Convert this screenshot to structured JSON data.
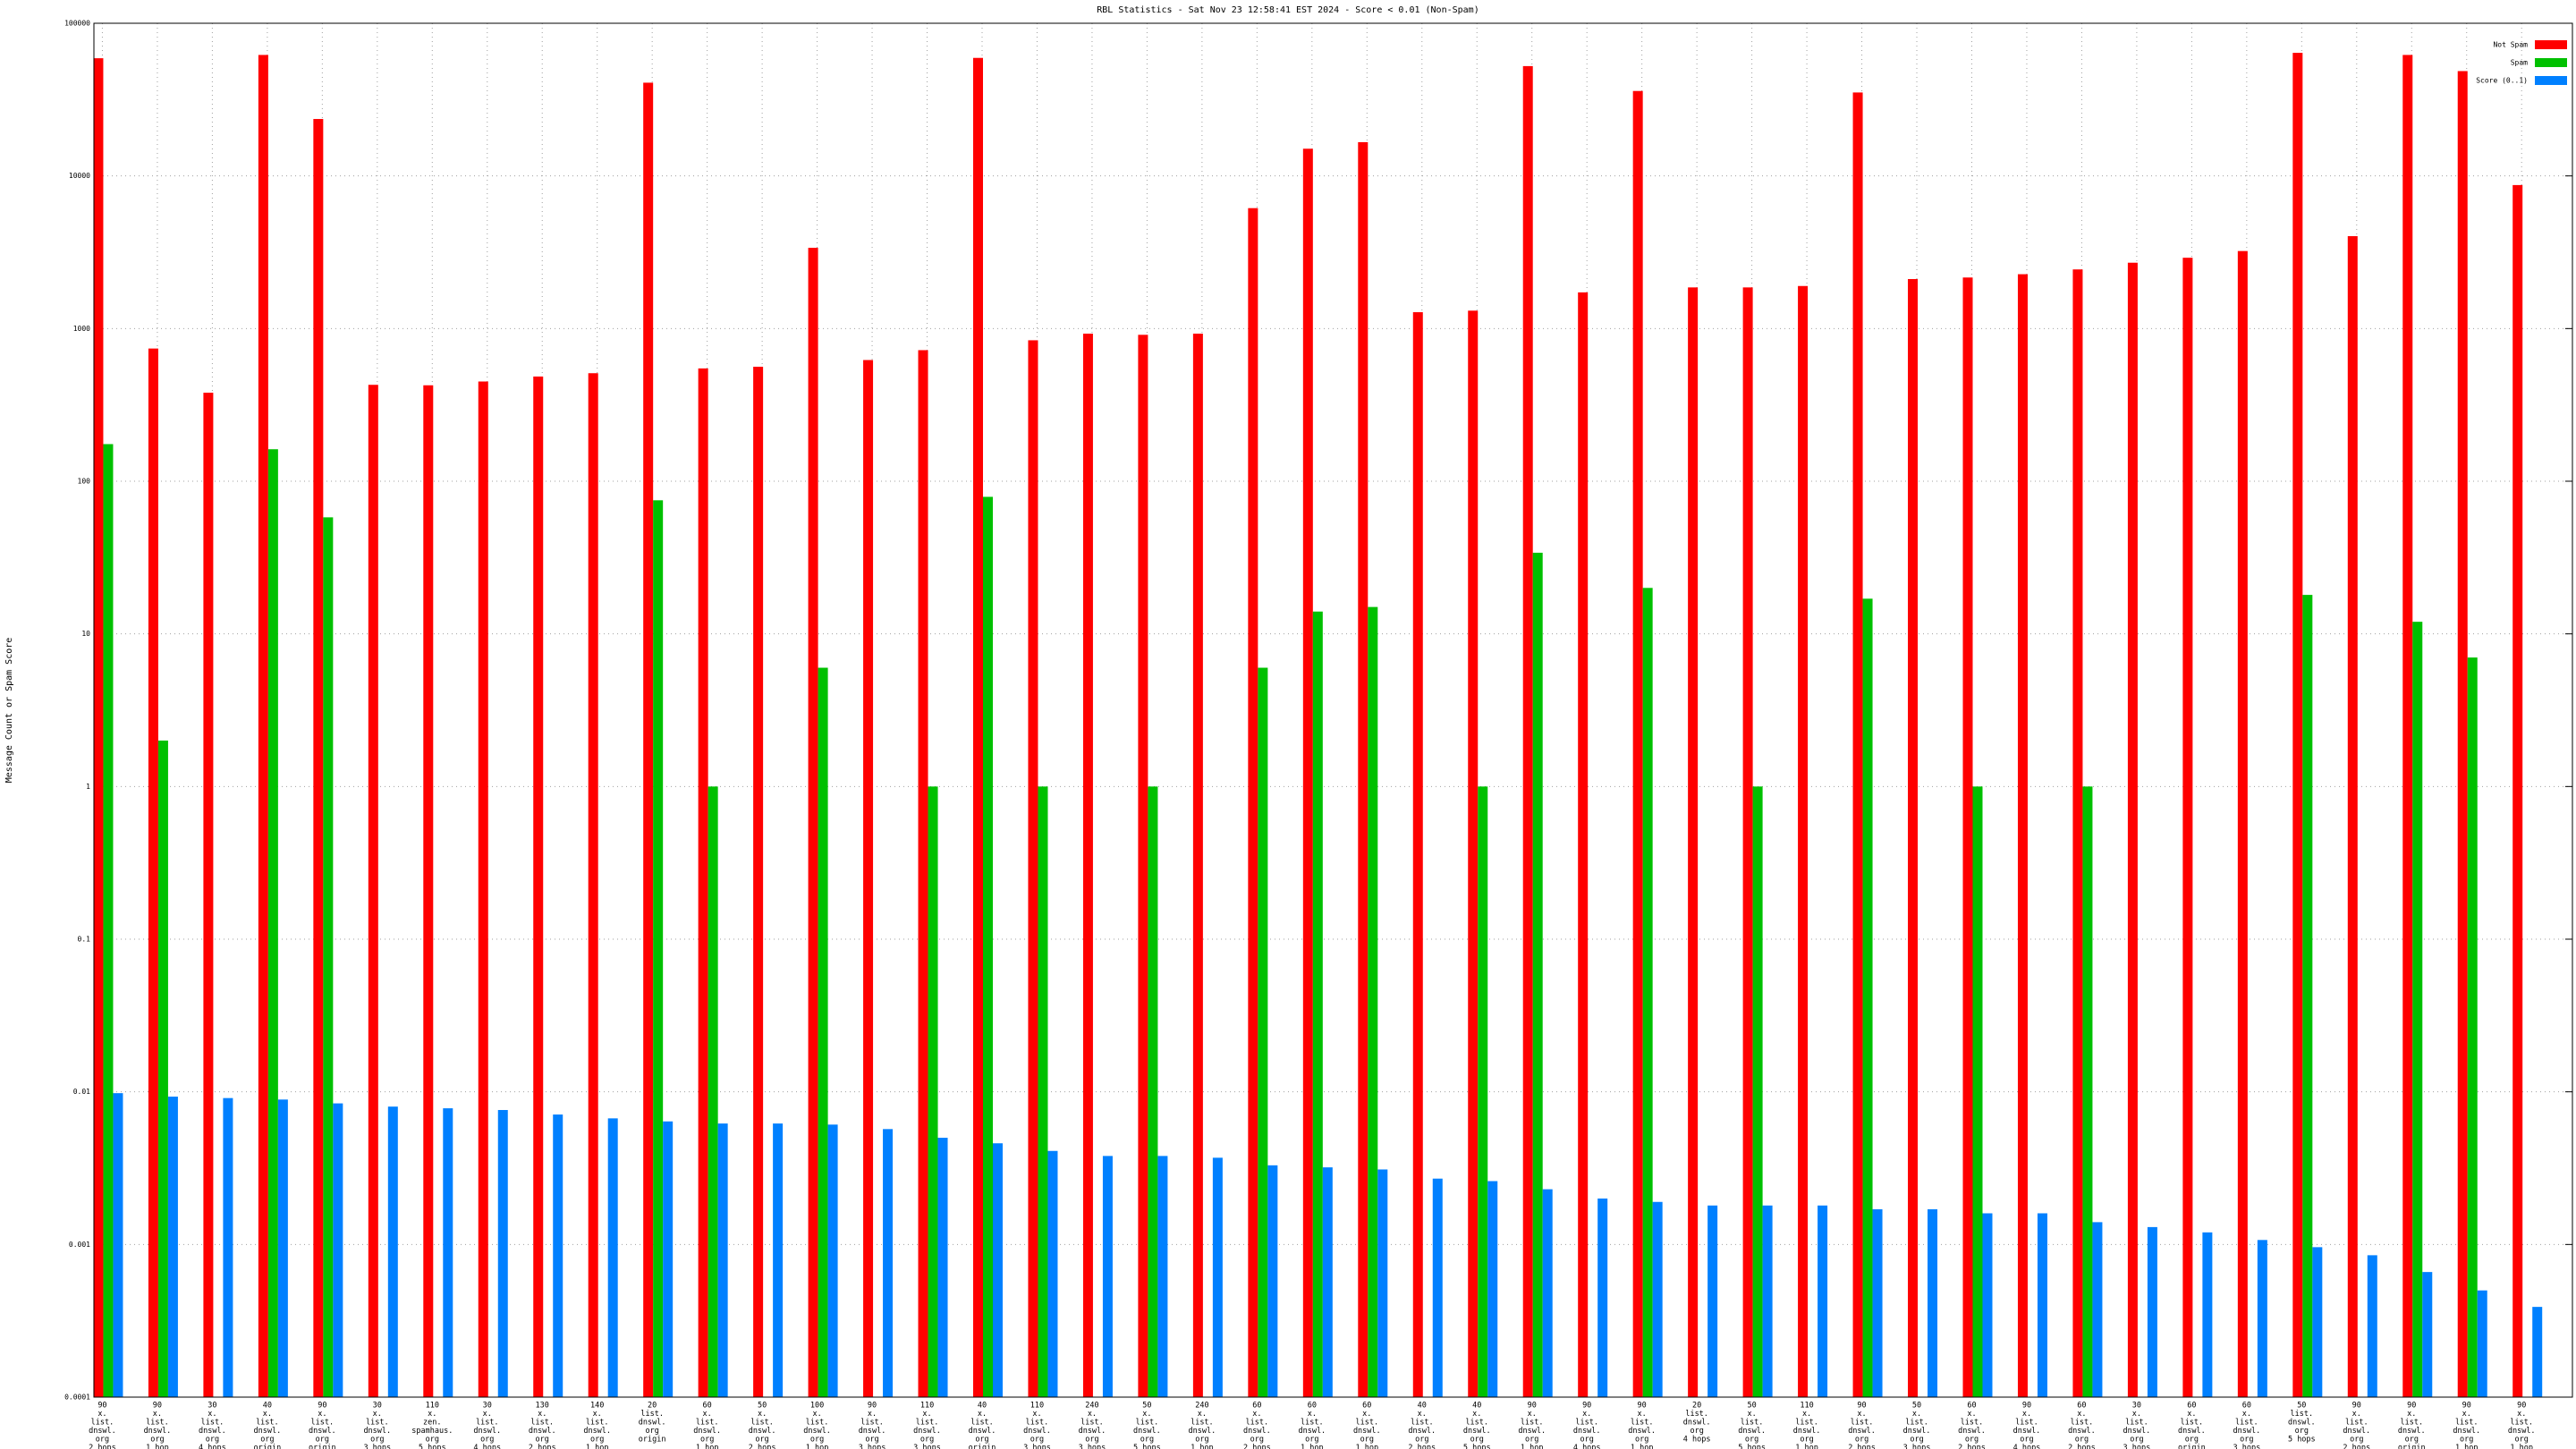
{
  "chart_data": {
    "type": "bar",
    "title": "RBL Statistics - Sat Nov 23 12:58:41 EST 2024 - Score < 0.01 (Non-Spam)",
    "y_label": "Message Count or Spam Score",
    "log_y": true,
    "grid": true,
    "legend": "upper right",
    "ylim": [
      0.0001,
      100000
    ],
    "yticks": [
      0.0001,
      0.001,
      0.01,
      0.1,
      1,
      10,
      100,
      1000,
      10000,
      100000
    ],
    "categories": [
      [
        "90",
        "x.",
        "list.",
        "dnswl.",
        "org",
        "2 hops"
      ],
      [
        "90",
        "x.",
        "list.",
        "dnswl.",
        "org",
        "1 hop"
      ],
      [
        "30",
        "x.",
        "list.",
        "dnswl.",
        "org",
        "4 hops"
      ],
      [
        "40",
        "x.",
        "list.",
        "dnswl.",
        "org",
        "origin"
      ],
      [
        "90",
        "x.",
        "list.",
        "dnswl.",
        "org",
        "origin"
      ],
      [
        "30",
        "x.",
        "list.",
        "dnswl.",
        "org",
        "3 hops"
      ],
      [
        "110",
        "x.",
        "zen.",
        "spamhaus.",
        "org",
        "5 hops"
      ],
      [
        "30",
        "x.",
        "list.",
        "dnswl.",
        "org",
        "4 hops"
      ],
      [
        "130",
        "x.",
        "list.",
        "dnswl.",
        "org",
        "2 hops"
      ],
      [
        "140",
        "x.",
        "list.",
        "dnswl.",
        "org",
        "1 hop"
      ],
      [
        "20",
        "list.",
        "dnswl.",
        "org",
        "origin"
      ],
      [
        "60",
        "x.",
        "list.",
        "dnswl.",
        "org",
        "1 hop"
      ],
      [
        "50",
        "x.",
        "list.",
        "dnswl.",
        "org",
        "2 hops"
      ],
      [
        "100",
        "x.",
        "list.",
        "dnswl.",
        "org",
        "1 hop"
      ],
      [
        "90",
        "x.",
        "list.",
        "dnswl.",
        "org",
        "3 hops"
      ],
      [
        "110",
        "x.",
        "list.",
        "dnswl.",
        "org",
        "3 hops"
      ],
      [
        "40",
        "x.",
        "list.",
        "dnswl.",
        "org",
        "origin"
      ],
      [
        "110",
        "x.",
        "list.",
        "dnswl.",
        "org",
        "3 hops"
      ],
      [
        "240",
        "x.",
        "list.",
        "dnswl.",
        "org",
        "3 hops"
      ],
      [
        "50",
        "x.",
        "list.",
        "dnswl.",
        "org",
        "5 hops"
      ],
      [
        "240",
        "x.",
        "list.",
        "dnswl.",
        "org",
        "1 hop"
      ],
      [
        "60",
        "x.",
        "list.",
        "dnswl.",
        "org",
        "2 hops"
      ],
      [
        "60",
        "x.",
        "list.",
        "dnswl.",
        "org",
        "1 hop"
      ],
      [
        "60",
        "x.",
        "list.",
        "dnswl.",
        "org",
        "1 hop"
      ],
      [
        "40",
        "x.",
        "list.",
        "dnswl.",
        "org",
        "2 hops"
      ],
      [
        "40",
        "x.",
        "list.",
        "dnswl.",
        "org",
        "5 hops"
      ],
      [
        "90",
        "x.",
        "list.",
        "dnswl.",
        "org",
        "1 hop"
      ],
      [
        "90",
        "x.",
        "list.",
        "dnswl.",
        "org",
        "4 hops"
      ],
      [
        "90",
        "x.",
        "list.",
        "dnswl.",
        "org",
        "1 hop"
      ],
      [
        "20",
        "list.",
        "dnswl.",
        "org",
        "4 hops"
      ],
      [
        "50",
        "x.",
        "list.",
        "dnswl.",
        "org",
        "5 hops"
      ],
      [
        "110",
        "x.",
        "list.",
        "dnswl.",
        "org",
        "1 hop"
      ],
      [
        "90",
        "x.",
        "list.",
        "dnswl.",
        "org",
        "2 hops"
      ],
      [
        "50",
        "x.",
        "list.",
        "dnswl.",
        "org",
        "3 hops"
      ],
      [
        "60",
        "x.",
        "list.",
        "dnswl.",
        "org",
        "2 hops"
      ],
      [
        "90",
        "x.",
        "list.",
        "dnswl.",
        "org",
        "4 hops"
      ],
      [
        "60",
        "x.",
        "list.",
        "dnswl.",
        "org",
        "2 hops"
      ],
      [
        "30",
        "x.",
        "list.",
        "dnswl.",
        "org",
        "3 hops"
      ],
      [
        "60",
        "x.",
        "list.",
        "dnswl.",
        "org",
        "origin"
      ],
      [
        "60",
        "x.",
        "list.",
        "dnswl.",
        "org",
        "3 hops"
      ],
      [
        "50",
        "list.",
        "dnswl.",
        "org",
        "5 hops"
      ],
      [
        "90",
        "x.",
        "list.",
        "dnswl.",
        "org",
        "2 hops"
      ],
      [
        "90",
        "x.",
        "list.",
        "dnswl.",
        "org",
        "origin"
      ],
      [
        "90",
        "x.",
        "list.",
        "dnswl.",
        "org",
        "1 hop"
      ],
      [
        "90",
        "x.",
        "list.",
        "dnswl.",
        "org",
        "1 hop"
      ]
    ],
    "series": [
      {
        "name": "Not Spam",
        "color": "#ff0000",
        "values": [
          59000,
          740,
          380,
          62000,
          23600,
          428,
          425,
          450,
          485,
          510,
          40800,
          548,
          562,
          3380,
          622,
          722,
          59300,
          838,
          926,
          910,
          926,
          6150,
          15070,
          16640,
          1280,
          1310,
          52400,
          1726,
          36000,
          1860,
          1860,
          1900,
          35200,
          2110,
          2160,
          2270,
          2440,
          2700,
          2910,
          3220,
          64000,
          4030,
          62000,
          48600,
          8710
        ]
      },
      {
        "name": "Spam",
        "color": "#00c000",
        "values": [
          175,
          2,
          null,
          162,
          58,
          null,
          null,
          null,
          null,
          null,
          75,
          1,
          null,
          6,
          null,
          1,
          79,
          1,
          null,
          1,
          null,
          6,
          14,
          15,
          null,
          1,
          34,
          null,
          20,
          null,
          1,
          null,
          17,
          null,
          1,
          null,
          1,
          null,
          null,
          null,
          18,
          null,
          12,
          7,
          null
        ]
      },
      {
        "name": "Score (0..1)",
        "color": "#0080ff",
        "values": [
          0.0098,
          0.0093,
          0.0091,
          0.0089,
          0.0084,
          0.008,
          0.0078,
          0.0076,
          0.0071,
          0.0067,
          0.0064,
          0.0062,
          0.0062,
          0.0061,
          0.0057,
          0.005,
          0.0046,
          0.0041,
          0.0038,
          0.0038,
          0.0037,
          0.0033,
          0.0032,
          0.0031,
          0.0027,
          0.0026,
          0.0023,
          0.002,
          0.0019,
          0.0018,
          0.0018,
          0.0018,
          0.0017,
          0.0017,
          0.0016,
          0.0016,
          0.0014,
          0.0013,
          0.0012,
          0.00107,
          0.00096,
          0.00085,
          0.00066,
          0.0005,
          0.00039
        ]
      }
    ]
  }
}
